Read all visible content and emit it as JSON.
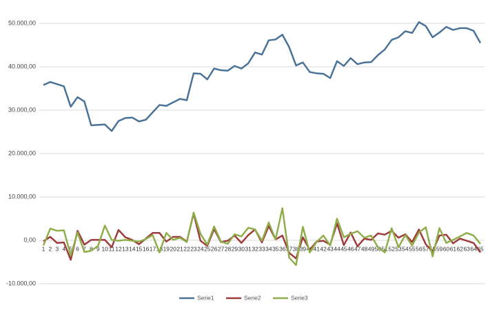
{
  "chart_data": {
    "type": "line",
    "categories": [
      "1",
      "2",
      "3",
      "4",
      "5",
      "6",
      "7",
      "8",
      "9",
      "10",
      "11",
      "12",
      "13",
      "14",
      "15",
      "16",
      "17",
      "18",
      "19",
      "20",
      "21",
      "22",
      "23",
      "24",
      "25",
      "26",
      "27",
      "28",
      "29",
      "30",
      "31",
      "32",
      "33",
      "34",
      "35",
      "36",
      "37",
      "38",
      "39",
      "40",
      "41",
      "42",
      "43",
      "44",
      "45",
      "46",
      "47",
      "48",
      "49",
      "50",
      "51",
      "52",
      "53",
      "54",
      "55",
      "56",
      "57",
      "58",
      "59",
      "60",
      "61",
      "62",
      "63",
      "64",
      "65"
    ],
    "series": [
      {
        "name": "Serie1",
        "color": "#4a7296",
        "values": [
          35800,
          36500,
          36000,
          35500,
          30800,
          33000,
          32000,
          26500,
          26600,
          26700,
          25200,
          27500,
          28200,
          28300,
          27400,
          27800,
          29500,
          31200,
          31000,
          31800,
          32600,
          32300,
          38500,
          38400,
          37100,
          39600,
          39200,
          39100,
          40200,
          39600,
          40800,
          43300,
          42800,
          46100,
          46300,
          47400,
          44500,
          40300,
          41000,
          38800,
          38500,
          38400,
          37400,
          41300,
          40200,
          42000,
          40600,
          41000,
          41100,
          42700,
          44000,
          46200,
          46800,
          48200,
          47800,
          50300,
          49400,
          46800,
          47900,
          49200,
          48500,
          48900,
          48900,
          48300,
          45500
        ]
      },
      {
        "name": "Serie2",
        "color": "#9e3b3b",
        "values": [
          -200,
          800,
          -600,
          -500,
          -4500,
          2200,
          -1000,
          100,
          100,
          100,
          -1600,
          2400,
          700,
          100,
          -900,
          400,
          1700,
          1700,
          -300,
          800,
          800,
          -300,
          6200,
          -100,
          -1300,
          2600,
          -400,
          -100,
          1100,
          -600,
          1200,
          2500,
          -500,
          3300,
          200,
          1100,
          -2900,
          -4200,
          700,
          -2200,
          -300,
          -100,
          -1000,
          3900,
          -1100,
          1800,
          -1400,
          400,
          100,
          1600,
          1300,
          2200,
          600,
          1400,
          -400,
          2500,
          -900,
          -2600,
          1100,
          1300,
          -700,
          400,
          -100,
          -600,
          -2800
        ]
      },
      {
        "name": "Serie3",
        "color": "#8fae4a",
        "values": [
          -1200,
          2700,
          2200,
          2300,
          -3500,
          1800,
          -2700,
          -2400,
          -1300,
          3400,
          100,
          -100,
          100,
          -100,
          -300,
          300,
          1200,
          -2800,
          1700,
          100,
          600,
          -400,
          6400,
          1500,
          -1000,
          3200,
          -300,
          -800,
          1400,
          900,
          2900,
          2500,
          -100,
          4100,
          200,
          7400,
          -4000,
          -5700,
          3100,
          -2800,
          -400,
          1100,
          -1200,
          5000,
          700,
          1500,
          2100,
          600,
          1100,
          -1600,
          -2800,
          2800,
          -1600,
          1200,
          -1200,
          1800,
          3000,
          -3700,
          2800,
          -600,
          100,
          900,
          1700,
          1100,
          -800
        ]
      }
    ],
    "ylim": [
      -10000,
      50000
    ],
    "yticks": [
      {
        "value": -10000,
        "label": "-10.000,00"
      },
      {
        "value": 0,
        "label": "0,00"
      },
      {
        "value": 10000,
        "label": "10.000,00"
      },
      {
        "value": 20000,
        "label": "20.000,00"
      },
      {
        "value": 30000,
        "label": "30.000,00"
      },
      {
        "value": 40000,
        "label": "40.000,00"
      },
      {
        "value": 50000,
        "label": "50.000,00"
      }
    ],
    "grid": true,
    "legend": "bottom"
  }
}
